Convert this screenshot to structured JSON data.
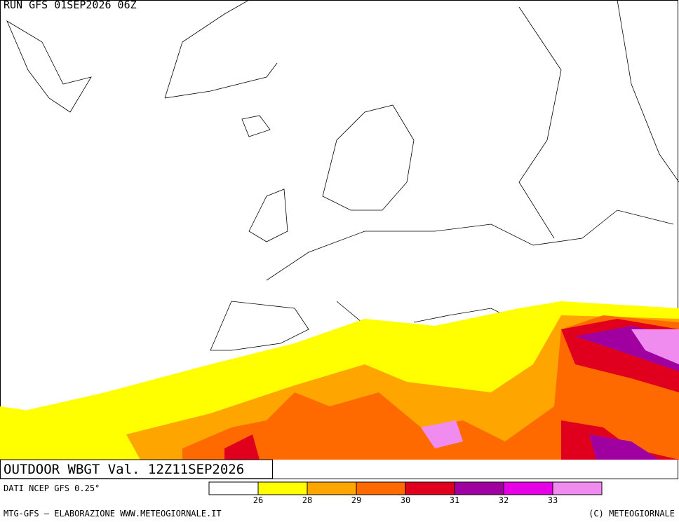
{
  "header": {
    "run": "RUN GFS 01SEP2026 06Z"
  },
  "title": "OUTDOOR WBGT Val. 12Z11SEP2026",
  "source": "DATI NCEP GFS 0.25°",
  "legend": {
    "colors": [
      "#ffffff",
      "#ffff00",
      "#ffa500",
      "#ff6a00",
      "#e0001e",
      "#a000a0",
      "#e600e6",
      "#f08cf0"
    ],
    "ticks": [
      26,
      28,
      29,
      30,
      31,
      32,
      33
    ]
  },
  "footer": {
    "left": "MTG-GFS – ELABORAZIONE WWW.METEOGIORNALE.IT",
    "right": "(C) METEOGIORNALE"
  }
}
